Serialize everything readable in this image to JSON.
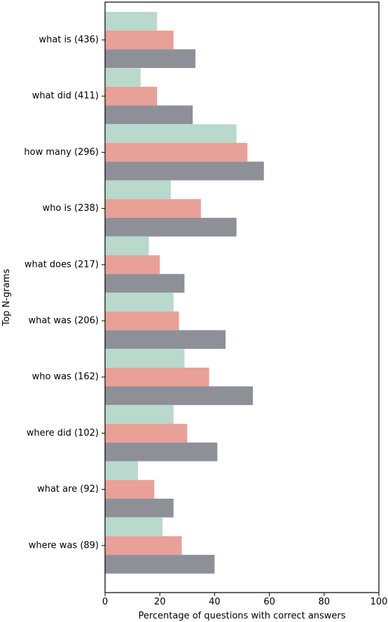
{
  "chart_data": {
    "type": "bar",
    "orientation": "horizontal",
    "categories": [
      "what is (436)",
      "what did (411)",
      "how many (296)",
      "who is (238)",
      "what does (217)",
      "what was (206)",
      "who was (162)",
      "where did (102)",
      "what are (92)",
      "where was (89)"
    ],
    "series": [
      {
        "color": "#b9d9cd",
        "values": [
          19,
          13,
          48,
          24,
          16,
          25,
          29,
          25,
          12,
          21
        ]
      },
      {
        "color": "#e8a097",
        "values": [
          25,
          19,
          52,
          35,
          20,
          27,
          38,
          30,
          18,
          28
        ]
      },
      {
        "color": "#8e9098",
        "values": [
          33,
          32,
          58,
          48,
          29,
          44,
          54,
          41,
          25,
          40
        ]
      }
    ],
    "xlabel": "Percentage of questions with correct answers",
    "ylabel": "Top N-grams",
    "xlim": [
      0,
      100
    ],
    "xticks": [
      "0",
      "20",
      "40",
      "60",
      "80",
      "100"
    ],
    "grid": false,
    "legend": "none"
  }
}
